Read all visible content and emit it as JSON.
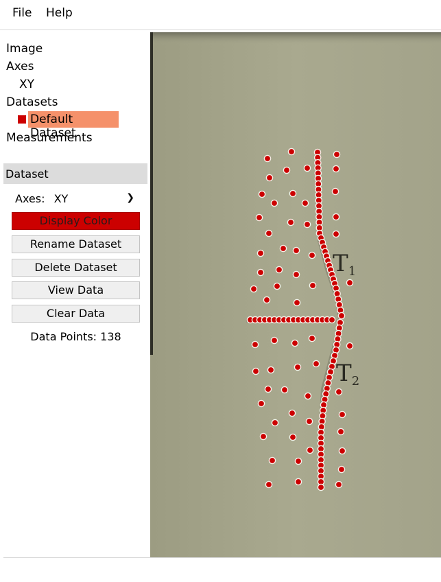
{
  "menu": {
    "file": "File",
    "help": "Help"
  },
  "tree": {
    "image": "Image",
    "axes": "Axes",
    "axes_child": "XY",
    "datasets": "Datasets",
    "dataset_child": "Default Dataset",
    "measurements": "Measurements"
  },
  "panel": {
    "title": "Dataset",
    "axes_label": "Axes:",
    "axes_value": "XY",
    "buttons": {
      "display_color": "Display Color",
      "rename": "Rename Dataset",
      "delete": "Delete Dataset",
      "view": "View Data",
      "clear": "Clear Data"
    },
    "data_points_label": "Data Points:",
    "data_points_value": "138"
  },
  "image": {
    "label_t1": "T",
    "label_t1_sub": "1",
    "label_t2": "T",
    "label_t2_sub": "2"
  },
  "colors": {
    "dataset_color": "#cc0000",
    "selection": "#f5916a"
  }
}
